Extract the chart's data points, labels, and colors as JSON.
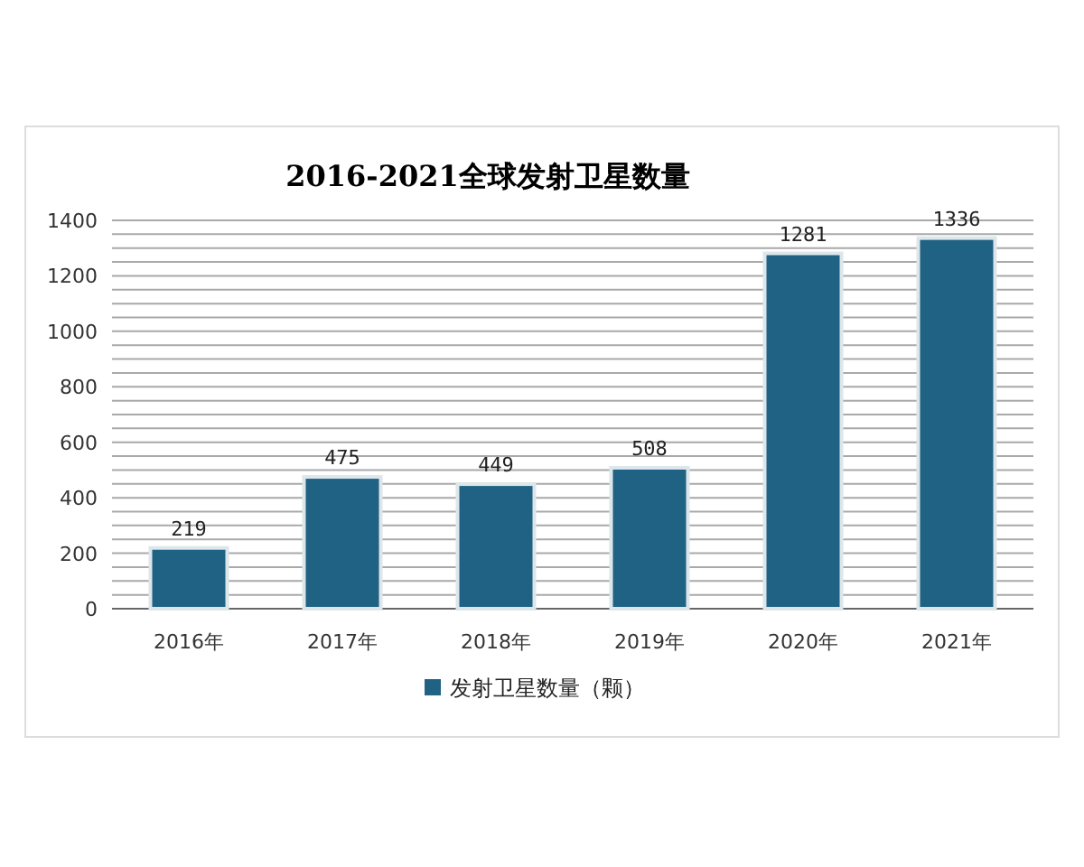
{
  "chart_data": {
    "type": "bar",
    "title": "2016-2021全球发射卫星数量",
    "categories": [
      "2016年",
      "2017年",
      "2018年",
      "2019年",
      "2020年",
      "2021年"
    ],
    "series": [
      {
        "name": "发射卫星数量（颗）",
        "color": "#1f6283",
        "values": [
          219,
          475,
          449,
          508,
          1281,
          1336
        ]
      }
    ],
    "ylim": [
      0,
      1400
    ],
    "yticks": [
      0,
      {
        "value": 50,
        "label": null
      },
      {
        "value": 100,
        "label": null
      },
      {
        "value": 150,
        "label": null
      },
      200,
      {
        "value": 250,
        "label": null
      },
      {
        "value": 300,
        "label": null
      },
      {
        "value": 350,
        "label": null
      },
      400,
      {
        "value": 450,
        "label": null
      },
      {
        "value": 500,
        "label": null
      },
      {
        "value": 550,
        "label": null
      },
      600,
      {
        "value": 650,
        "label": null
      },
      {
        "value": 700,
        "label": null
      },
      {
        "value": 750,
        "label": null
      },
      800,
      {
        "value": 850,
        "label": null
      },
      {
        "value": 900,
        "label": null
      },
      {
        "value": 950,
        "label": null
      },
      1000,
      {
        "value": 1050,
        "label": null
      },
      {
        "value": 1100,
        "label": null
      },
      {
        "value": 1150,
        "label": null
      },
      1200,
      {
        "value": 1250,
        "label": null
      },
      {
        "value": 1300,
        "label": null
      },
      {
        "value": 1350,
        "label": null
      },
      1400
    ],
    "grid": "y",
    "legend": "bottom",
    "data_labels": true
  }
}
